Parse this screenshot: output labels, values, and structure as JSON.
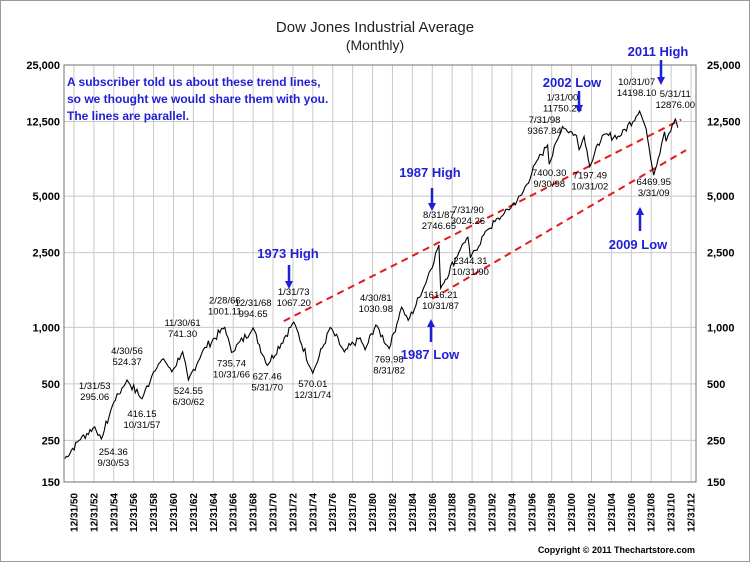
{
  "chart_data": {
    "type": "line",
    "title": "Dow Jones Industrial Average",
    "subtitle": "(Monthly)",
    "yscale": "log",
    "ylim": [
      150,
      25000
    ],
    "xlim": [
      "1949-12-31",
      "2013-06-30"
    ],
    "grid": true,
    "y_ticks": [
      "25,000",
      "12,500",
      "5,000",
      "2,500",
      "1,000",
      "500",
      "250",
      "150"
    ],
    "y_tick_values": [
      25000,
      12500,
      5000,
      2500,
      1000,
      500,
      250,
      150
    ],
    "x_ticks": [
      "12/31/50",
      "12/31/52",
      "12/31/54",
      "12/31/56",
      "12/31/58",
      "12/31/60",
      "12/31/62",
      "12/31/64",
      "12/31/66",
      "12/31/68",
      "12/31/70",
      "12/31/72",
      "12/31/74",
      "12/31/76",
      "12/31/78",
      "12/31/80",
      "12/31/82",
      "12/31/84",
      "12/31/86",
      "12/31/88",
      "12/31/90",
      "12/31/92",
      "12/31/94",
      "12/31/96",
      "12/31/98",
      "12/31/00",
      "12/31/02",
      "12/31/04",
      "12/31/06",
      "12/31/08",
      "12/31/10",
      "12/31/12"
    ],
    "series": [
      {
        "color": "#000000",
        "points": [
          [
            "1950-01-31",
            200
          ],
          [
            "1951-06-30",
            250
          ],
          [
            "1953-01-31",
            295.06
          ],
          [
            "1953-09-30",
            254.36
          ],
          [
            "1954-12-31",
            400
          ],
          [
            "1956-04-30",
            524.37
          ],
          [
            "1957-10-31",
            416.15
          ],
          [
            "1958-12-31",
            580
          ],
          [
            "1959-12-31",
            680
          ],
          [
            "1960-10-31",
            580
          ],
          [
            "1961-11-30",
            741.3
          ],
          [
            "1962-06-30",
            524.55
          ],
          [
            "1963-12-31",
            760
          ],
          [
            "1966-02-28",
            1001.11
          ],
          [
            "1966-10-31",
            735.74
          ],
          [
            "1968-12-31",
            994.65
          ],
          [
            "1970-05-31",
            627.46
          ],
          [
            "1973-01-31",
            1067.2
          ],
          [
            "1974-12-31",
            570.01
          ],
          [
            "1976-09-30",
            1000
          ],
          [
            "1978-02-28",
            740
          ],
          [
            "1979-09-30",
            880
          ],
          [
            "1980-03-31",
            760
          ],
          [
            "1981-04-30",
            1030.98
          ],
          [
            "1982-08-31",
            769.98
          ],
          [
            "1983-11-30",
            1280
          ],
          [
            "1984-07-31",
            1090
          ],
          [
            "1985-12-31",
            1550
          ],
          [
            "1987-08-31",
            2746.65
          ],
          [
            "1987-10-31",
            1616.21
          ],
          [
            "1989-12-31",
            2750
          ],
          [
            "1990-07-31",
            3024.26
          ],
          [
            "1990-10-31",
            2344.31
          ],
          [
            "1992-06-30",
            3300
          ],
          [
            "1994-01-31",
            3950
          ],
          [
            "1995-12-31",
            5100
          ],
          [
            "1997-06-30",
            7700
          ],
          [
            "1998-07-31",
            9367.84
          ],
          [
            "1998-09-30",
            7400.3
          ],
          [
            "2000-01-31",
            11750.28
          ],
          [
            "2001-06-30",
            10500
          ],
          [
            "2001-09-30",
            8850
          ],
          [
            "2002-03-31",
            10400
          ],
          [
            "2002-10-31",
            7197.49
          ],
          [
            "2004-01-31",
            10500
          ],
          [
            "2005-10-31",
            10400
          ],
          [
            "2007-10-31",
            14198.1
          ],
          [
            "2008-06-30",
            11400
          ],
          [
            "2009-03-31",
            6469.95
          ],
          [
            "2010-04-30",
            11000
          ],
          [
            "2010-06-30",
            9800
          ],
          [
            "2011-05-31",
            12876
          ],
          [
            "2011-08-31",
            11600
          ]
        ]
      }
    ],
    "trend_lines": [
      {
        "style": "dashed",
        "color": "#e41b1b",
        "from": [
          "1972-01-31",
          1080
        ],
        "to": [
          "2011-12-31",
          12800
        ]
      },
      {
        "style": "dashed",
        "color": "#e41b1b",
        "from": [
          "1986-12-31",
          1420
        ],
        "to": [
          "2012-06-30",
          8800
        ]
      }
    ],
    "annotations": [
      {
        "date": "1953-01-31",
        "label": "1/31/53",
        "value": "295.06"
      },
      {
        "date": "1953-09-30",
        "label": "254.36",
        "value": "9/30/53"
      },
      {
        "date": "1956-04-30",
        "label": "4/30/56",
        "value": "524.37"
      },
      {
        "date": "1957-10-31",
        "label": "416.15",
        "value": "10/31/57"
      },
      {
        "date": "1961-11-30",
        "label": "11/30/61",
        "value": "741.30"
      },
      {
        "date": "1962-06-30",
        "label": "524.55",
        "value": "6/30/62"
      },
      {
        "date": "1966-02-28",
        "label": "2/28/66",
        "value": "1001.11"
      },
      {
        "date": "1966-10-31",
        "label": "735.74",
        "value": "10/31/66"
      },
      {
        "date": "1968-12-31",
        "label": "12/31/68",
        "value": "994.65"
      },
      {
        "date": "1970-05-31",
        "label": "627.46",
        "value": "5/31/70"
      },
      {
        "date": "1973-01-31",
        "label": "1/31/73",
        "value": "1067.20"
      },
      {
        "date": "1974-12-31",
        "label": "570.01",
        "value": "12/31/74"
      },
      {
        "date": "1981-04-30",
        "label": "4/30/81",
        "value": "1030.98"
      },
      {
        "date": "1982-08-31",
        "label": "769.98",
        "value": "8/31/82"
      },
      {
        "date": "1987-08-31",
        "label": "8/31/87",
        "value": "2746.65"
      },
      {
        "date": "1987-10-31",
        "label": "1616.21",
        "value": "10/31/87"
      },
      {
        "date": "1990-07-31",
        "label": "7/31/90",
        "value": "3024.26"
      },
      {
        "date": "1990-10-31",
        "label": "2344.31",
        "value": "10/31/90"
      },
      {
        "date": "1998-07-31",
        "label": "7/31/98",
        "value": "9367.84"
      },
      {
        "date": "1998-09-30",
        "label": "7400.30",
        "value": "9/30/98"
      },
      {
        "date": "2000-01-31",
        "label": "1/31/00",
        "value": "11750.28"
      },
      {
        "date": "2002-10-31",
        "label": "7197.49",
        "value": "10/31/02"
      },
      {
        "date": "2007-10-31",
        "label": "10/31/07",
        "value": "14198.10"
      },
      {
        "date": "2009-03-31",
        "label": "6469.95",
        "value": "3/31/09"
      },
      {
        "date": "2011-05-31",
        "label": "5/31/11",
        "value": "12876.00"
      }
    ],
    "callouts": [
      "1973 High",
      "1987 High",
      "1987 Low",
      "2002 Low",
      "2009 Low",
      "2011 High"
    ],
    "note": [
      "A subscriber told us about these trend lines,",
      "so we thought we would share them with you.",
      "The lines are parallel."
    ],
    "copyright": "Copyright © 2011 Thechartstore.com"
  },
  "colors": {
    "price_line": "#000000",
    "trend_line": "#e41b1b",
    "callout_text": "#1f1fd6",
    "grid": "#c8c8c8"
  }
}
